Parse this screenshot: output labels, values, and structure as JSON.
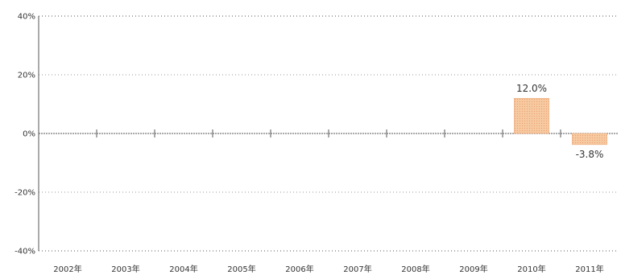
{
  "chart_data": {
    "type": "bar",
    "categories": [
      "2002年",
      "2003年",
      "2004年",
      "2005年",
      "2006年",
      "2007年",
      "2008年",
      "2009年",
      "2010年",
      "2011年"
    ],
    "values": [
      null,
      null,
      null,
      null,
      null,
      null,
      null,
      null,
      12.0,
      -3.8
    ],
    "data_labels": [
      "",
      "",
      "",
      "",
      "",
      "",
      "",
      "",
      "12.0%",
      "-3.8%"
    ],
    "y_ticks": [
      40,
      20,
      0,
      -20,
      -40
    ],
    "y_tick_labels": [
      "40%",
      "20%",
      "0%",
      "-20%",
      "-40%"
    ],
    "ylim": [
      -40,
      40
    ],
    "title": "",
    "xlabel": "",
    "ylabel": "",
    "grid": true,
    "bar_color": "#f7c9a0",
    "bar_edge_color": "#e8a070",
    "grid_color": "#9a9a9a",
    "axis_color": "#555555"
  }
}
